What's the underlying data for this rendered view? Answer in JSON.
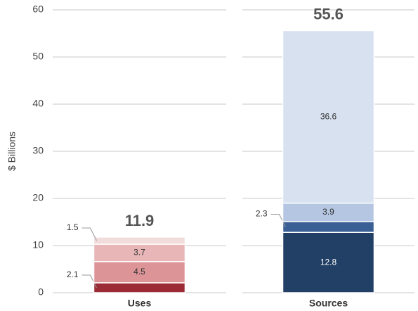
{
  "chart_data": {
    "type": "bar",
    "stacked": true,
    "ylabel": "$ Billions",
    "categories": [
      "Uses",
      "Sources"
    ],
    "segments": [
      {
        "values": [
          2.1,
          4.5,
          3.7,
          1.5
        ],
        "colors": [
          "#9b2c35",
          "#dd9497",
          "#e8b6b7",
          "#f2dbdb"
        ]
      },
      {
        "values": [
          12.8,
          2.3,
          3.9,
          36.6
        ],
        "colors": [
          "#223f65",
          "#3a5f95",
          "#b5c6e2",
          "#d8e1f0"
        ]
      }
    ],
    "totals": [
      11.9,
      55.6
    ],
    "ylim": [
      0,
      60
    ],
    "yticks": [
      0,
      10,
      20,
      30,
      40,
      50,
      60
    ],
    "grid": true
  }
}
